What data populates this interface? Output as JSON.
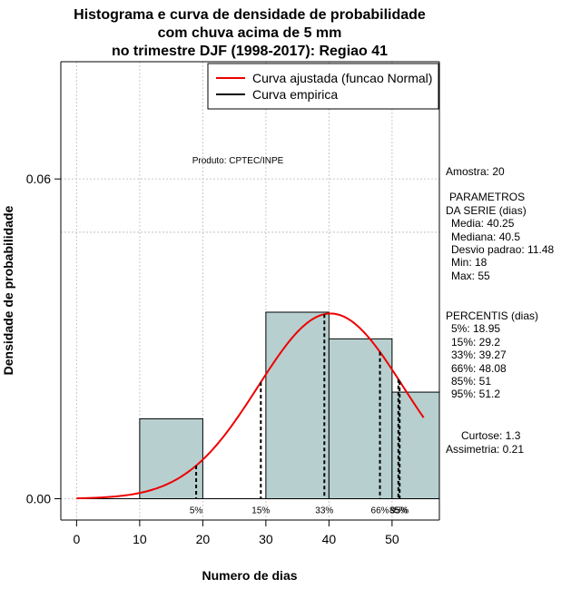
{
  "chart_data": {
    "type": "bar",
    "title": [
      "Histograma e curva de densidade de probabilidade",
      "com chuva acima de 5 mm",
      "no trimestre DJF (1998-2017): Regiao 41"
    ],
    "xlabel": "Numero de dias",
    "ylabel": "Densidade de probabilidade",
    "xlim": [
      -2.5,
      57.5
    ],
    "ylim": [
      -0.004,
      0.082
    ],
    "x_ticks": [
      0,
      10,
      20,
      30,
      40,
      50
    ],
    "y_ticks": [
      0.0,
      0.06
    ],
    "y_tick_labels": [
      "0.00",
      "0.06"
    ],
    "hline": 0.05,
    "grid": true,
    "bins": [
      {
        "from": 10,
        "to": 20,
        "density": 0.015
      },
      {
        "from": 20,
        "to": 30,
        "density": 0.0
      },
      {
        "from": 30,
        "to": 40,
        "density": 0.035
      },
      {
        "from": 40,
        "to": 50,
        "density": 0.03
      },
      {
        "from": 50,
        "to": 57.5,
        "density": 0.02
      }
    ],
    "bar_color": "#b7cfcf",
    "normal_fit": {
      "mean": 40.25,
      "sd": 11.48,
      "x_range": [
        0,
        55
      ],
      "color": "#ee0000"
    },
    "percentile_lines": [
      {
        "label": "5%",
        "x": 18.95
      },
      {
        "label": "15%",
        "x": 29.2
      },
      {
        "label": "33%",
        "x": 39.27
      },
      {
        "label": "66%",
        "x": 48.08
      },
      {
        "label": "85%",
        "x": 51
      },
      {
        "label": "95%",
        "x": 51.2
      }
    ],
    "legend": {
      "placement": "top-right",
      "entries": [
        {
          "label": "Curva ajustada (funcao Normal)",
          "color": "#ee0000"
        },
        {
          "label": "Curva empirica",
          "color": "#000000"
        }
      ]
    },
    "annotation": "Produto: CPTEC/INPE"
  },
  "stats": {
    "amostra": "Amostra: 20",
    "param_title1": "PARAMETROS",
    "param_title2": "DA SERIE (dias)",
    "media": "Media: 40.25",
    "mediana": "Mediana: 40.5",
    "desvio": "Desvio padrao: 11.48",
    "min": "Min: 18",
    "max": "Max: 55",
    "perc_title": "PERCENTIS (dias)",
    "p5": "5%: 18.95",
    "p15": "15%: 29.2",
    "p33": "33%: 39.27",
    "p66": "66%: 48.08",
    "p85": "85%: 51",
    "p95": "95%: 51.2",
    "curtose": "Curtose: 1.3",
    "assimetria": "Assimetria: 0.21"
  }
}
